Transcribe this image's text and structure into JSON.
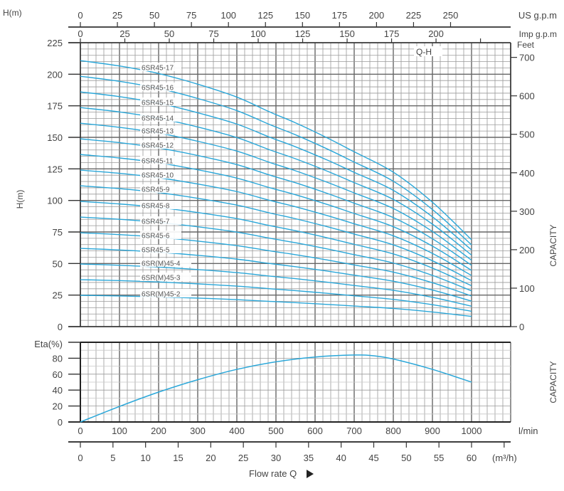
{
  "chart_data": [
    {
      "type": "line",
      "title": "Q-H",
      "xlabel": "Flow rate Q",
      "ylabel": "H(m)",
      "ylabel_right": "CAPACITY",
      "y2_unit": "Feet",
      "x_unit": "l/min",
      "xlim": [
        0,
        1100
      ],
      "ylim": [
        0,
        225
      ],
      "y_ticks": [
        0,
        25,
        50,
        75,
        100,
        125,
        150,
        175,
        200,
        225
      ],
      "y2_ticks": [
        0,
        100,
        200,
        300,
        400,
        500,
        600,
        700
      ],
      "top_axis_us": {
        "label": "US g.p.m",
        "ticks": [
          0,
          25,
          50,
          75,
          100,
          125,
          150,
          175,
          200,
          225,
          250
        ]
      },
      "top_axis_imp": {
        "label": "Imp g.p.m",
        "ticks": [
          0,
          25,
          50,
          75,
          100,
          125,
          150,
          175,
          200
        ]
      },
      "grid": true,
      "per_stage_curve": {
        "x": [
          0,
          100,
          200,
          300,
          400,
          485,
          550,
          631,
          700,
          800,
          900,
          1000
        ],
        "y": [
          12.4,
          12.15,
          11.8,
          11.3,
          10.7,
          10.0,
          9.5,
          8.8,
          8.15,
          7.2,
          5.8,
          4.05
        ]
      },
      "series": [
        {
          "name": "6SR45-17",
          "stages": 17
        },
        {
          "name": "6SR45-16",
          "stages": 16
        },
        {
          "name": "6SR45-15",
          "stages": 15
        },
        {
          "name": "6SR45-14",
          "stages": 14
        },
        {
          "name": "6SR45-13",
          "stages": 13
        },
        {
          "name": "6SR45-12",
          "stages": 12
        },
        {
          "name": "6SR45-11",
          "stages": 11
        },
        {
          "name": "6SR45-10",
          "stages": 10
        },
        {
          "name": "6SR45-9",
          "stages": 9
        },
        {
          "name": "6SR45-8",
          "stages": 8
        },
        {
          "name": "6SR45-7",
          "stages": 7
        },
        {
          "name": "6SR45-6",
          "stages": 6
        },
        {
          "name": "6SR45-5",
          "stages": 5
        },
        {
          "name": "6SR(M)45-4",
          "stages": 4
        },
        {
          "name": "6SR(M)45-3",
          "stages": 3
        },
        {
          "name": "6SR(M)45-2",
          "stages": 2
        }
      ],
      "line_color": "#2aa7d9"
    },
    {
      "type": "line",
      "ylabel": "Eta(%)",
      "ylabel_right": "CAPACITY",
      "xlim": [
        0,
        1100
      ],
      "ylim": [
        0,
        100
      ],
      "y_ticks": [
        0,
        20,
        40,
        60,
        80
      ],
      "x_ticks": [
        0,
        100,
        200,
        300,
        400,
        500,
        600,
        700,
        800,
        900,
        1000
      ],
      "x_unit": "l/min",
      "x2_ticks": [
        0,
        5,
        10,
        15,
        20,
        25,
        30,
        35,
        40,
        45,
        50,
        55,
        60
      ],
      "x2_unit": "(m³/h)",
      "xlabel": "Flow rate Q",
      "series": [
        {
          "name": "Eta",
          "x": [
            0,
            100,
            200,
            300,
            400,
            500,
            600,
            700,
            750,
            800,
            900,
            1000
          ],
          "y": [
            0,
            19.5,
            37.5,
            53,
            66,
            75.5,
            81.5,
            84,
            83,
            79,
            66,
            50
          ]
        }
      ],
      "line_color": "#2aa7d9"
    }
  ],
  "flow_arrow_icon": "triangle-right"
}
